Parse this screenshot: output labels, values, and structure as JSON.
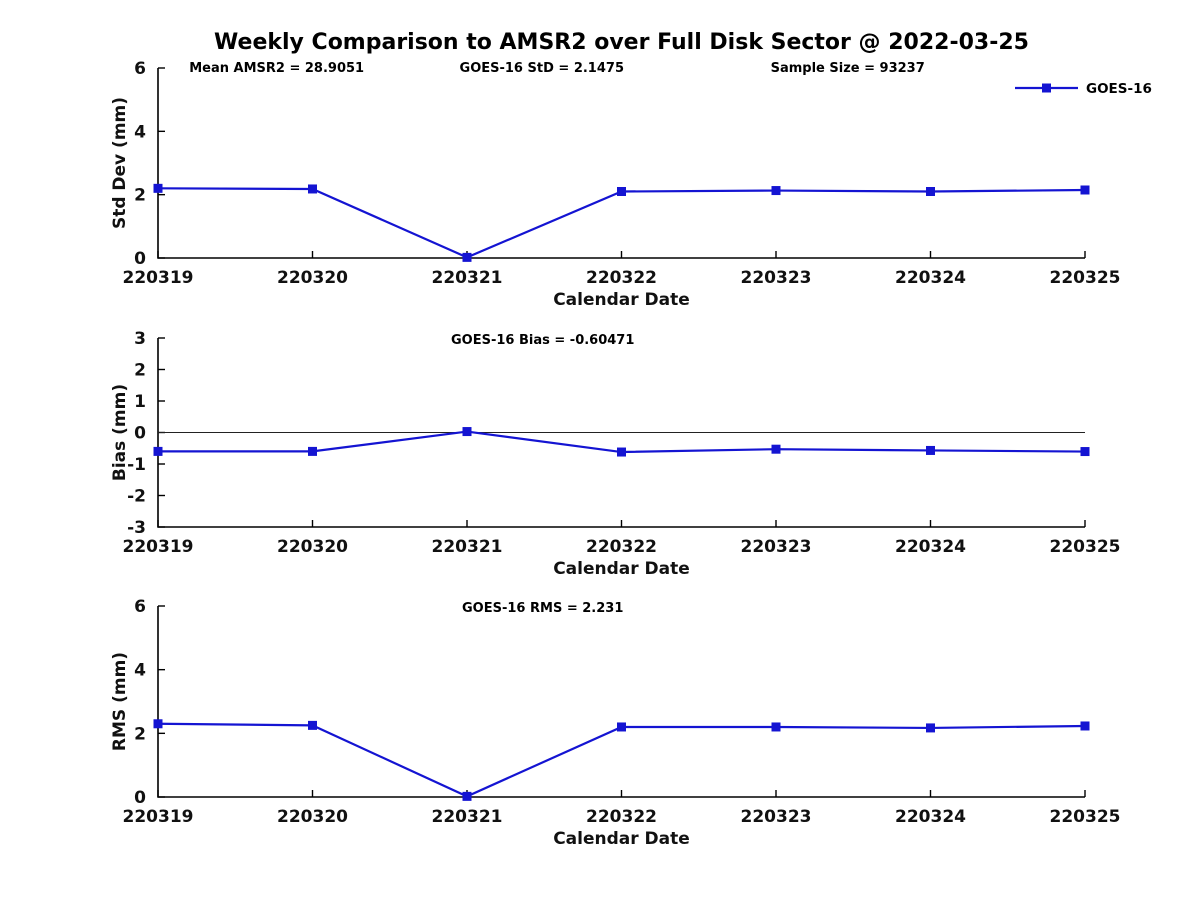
{
  "title": "Weekly Comparison to AMSR2 over Full Disk Sector @ 2022-03-25",
  "legend": {
    "label": "GOES-16",
    "color": "#1414d2"
  },
  "chart_data": [
    {
      "type": "line",
      "id": "std-dev",
      "annotations": [
        "Mean AMSR2 = 28.9051",
        "GOES-16 StD = 2.1475",
        "Sample Size = 93237"
      ],
      "ylabel": "Std Dev (mm)",
      "xlabel": "Calendar Date",
      "categories": [
        "220319",
        "220320",
        "220321",
        "220322",
        "220323",
        "220324",
        "220325"
      ],
      "values": [
        2.2,
        2.18,
        0.02,
        2.1,
        2.13,
        2.1,
        2.1475
      ],
      "ylim": [
        0,
        6
      ],
      "yticks": [
        0,
        2,
        4,
        6
      ],
      "zero_line": false,
      "series_name": "GOES-16",
      "line_color": "#1414d2",
      "marker": "square"
    },
    {
      "type": "line",
      "id": "bias",
      "title": "GOES-16 Bias  = -0.60471",
      "ylabel": "Bias (mm)",
      "xlabel": "Calendar Date",
      "categories": [
        "220319",
        "220320",
        "220321",
        "220322",
        "220323",
        "220324",
        "220325"
      ],
      "values": [
        -0.6,
        -0.6,
        0.03,
        -0.62,
        -0.53,
        -0.57,
        -0.60471
      ],
      "ylim": [
        -3,
        3
      ],
      "yticks": [
        -3,
        -2,
        -1,
        0,
        1,
        2,
        3
      ],
      "zero_line": true,
      "series_name": "GOES-16",
      "line_color": "#1414d2",
      "marker": "square"
    },
    {
      "type": "line",
      "id": "rms",
      "title": "GOES-16 RMS = 2.231",
      "ylabel": "RMS (mm)",
      "xlabel": "Calendar Date",
      "categories": [
        "220319",
        "220320",
        "220321",
        "220322",
        "220323",
        "220324",
        "220325"
      ],
      "values": [
        2.3,
        2.25,
        0.02,
        2.2,
        2.2,
        2.17,
        2.231
      ],
      "ylim": [
        0,
        6
      ],
      "yticks": [
        0,
        2,
        4,
        6
      ],
      "zero_line": false,
      "series_name": "GOES-16",
      "line_color": "#1414d2",
      "marker": "square"
    }
  ]
}
